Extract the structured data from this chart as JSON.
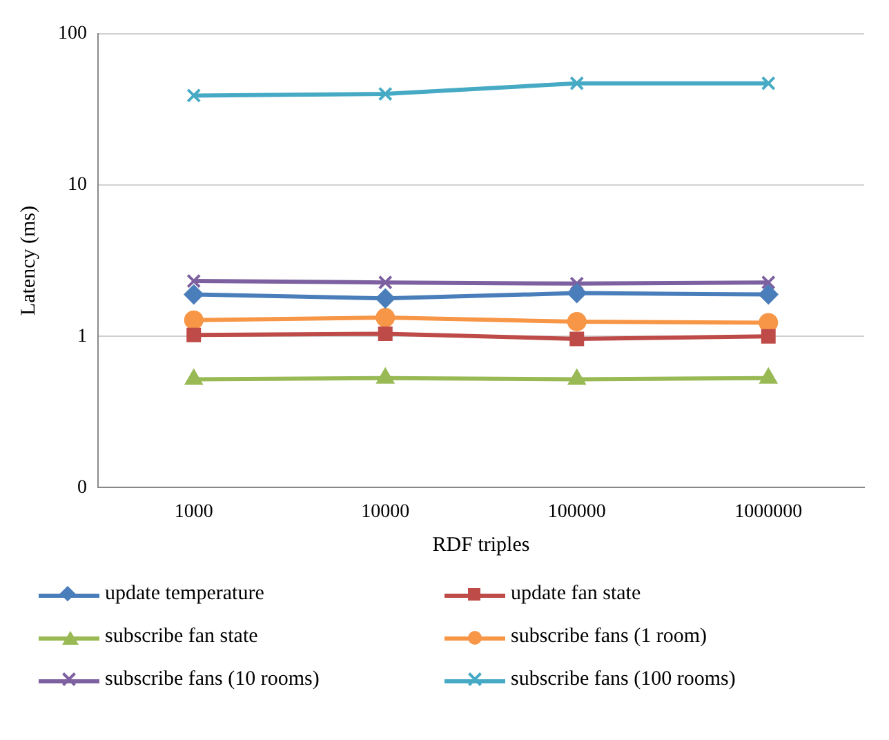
{
  "chart_data": {
    "type": "line",
    "xlabel": "RDF triples",
    "ylabel": "Latency (ms)",
    "categories": [
      "1000",
      "10000",
      "100000",
      "1000000"
    ],
    "log": "y",
    "ylim": [
      0.1,
      100
    ],
    "yticks": [
      {
        "value": 0.1,
        "label": "0"
      },
      1,
      10,
      100
    ],
    "grid": "y",
    "legend": "bottom",
    "line_style": "solid",
    "series": [
      {
        "name": "update temperature",
        "color": "#4a7ebb",
        "marker": "diamond",
        "values": [
          1.89,
          1.78,
          1.93,
          1.89
        ]
      },
      {
        "name": "update fan state",
        "color": "#be4b48",
        "marker": "square",
        "values": [
          1.02,
          1.04,
          0.96,
          1.0
        ]
      },
      {
        "name": "subscribe fan state",
        "color": "#98b954",
        "marker": "triangle",
        "values": [
          0.52,
          0.53,
          0.52,
          0.53
        ]
      },
      {
        "name": "subscribe fans (1 room)",
        "color": "#f79646",
        "marker": "circle",
        "values": [
          1.28,
          1.33,
          1.25,
          1.23
        ]
      },
      {
        "name": "subscribe fans (10 rooms)",
        "color": "#7d60a0",
        "marker": "cross",
        "values": [
          2.32,
          2.27,
          2.23,
          2.27
        ]
      },
      {
        "name": "subscribe fans (100 rooms)",
        "color": "#46aac5",
        "marker": "cross",
        "values": [
          39,
          40,
          47,
          47
        ]
      }
    ]
  }
}
